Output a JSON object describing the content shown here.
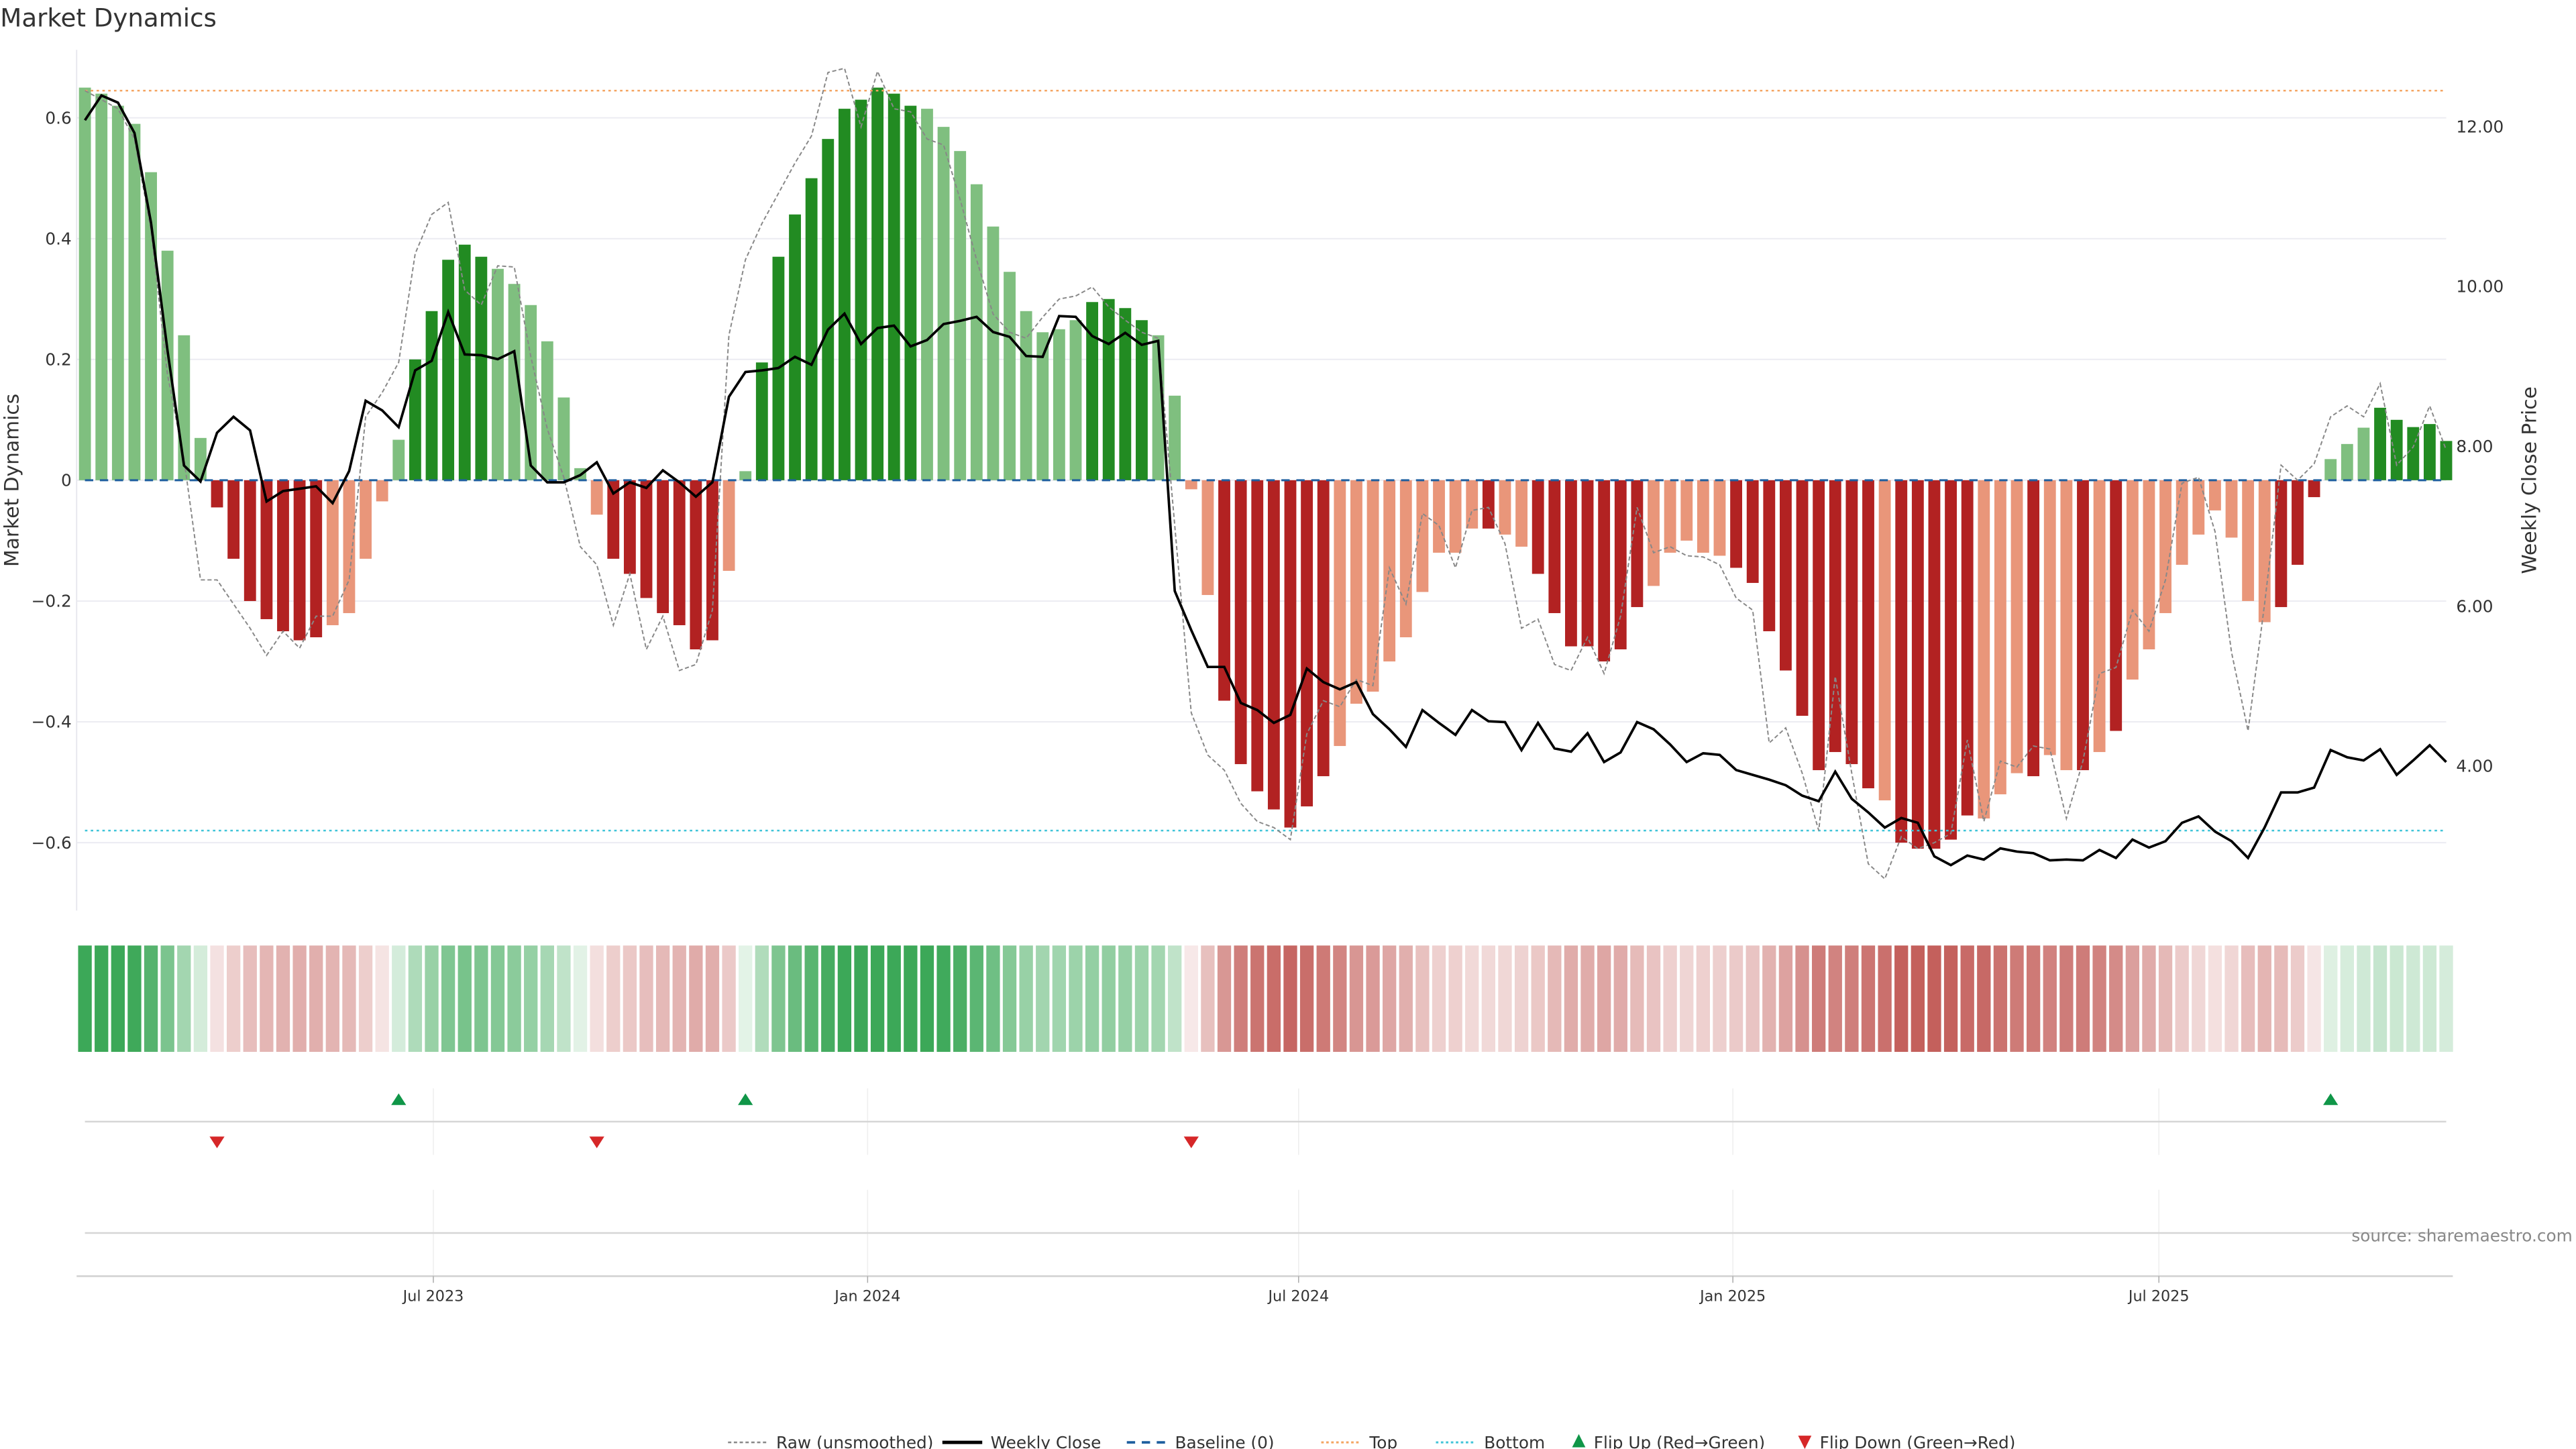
{
  "chart_data": {
    "type": "bar",
    "title": "Market Dynamics",
    "ylabel": "Market Dynamics",
    "y2label": "Weekly Close Price",
    "ylim": [
      -0.72,
      0.7
    ],
    "y2lim": [
      2.2,
      13.0
    ],
    "yticks": [
      {
        "v": 0.6,
        "label": "0.6"
      },
      {
        "v": 0.4,
        "label": "0.4"
      },
      {
        "v": 0.2,
        "label": "0.2"
      },
      {
        "v": 0,
        "label": "0"
      },
      {
        "v": -0.2,
        "label": "−0.2"
      },
      {
        "v": -0.4,
        "label": "−0.4"
      },
      {
        "v": -0.6,
        "label": "−0.6"
      }
    ],
    "y2ticks": [
      {
        "v": 4,
        "label": "4.00"
      },
      {
        "v": 6,
        "label": "6.00"
      },
      {
        "v": 8,
        "label": "8.00"
      },
      {
        "v": 10,
        "label": "10.00"
      },
      {
        "v": 12,
        "label": "12.00"
      }
    ],
    "xticks": [
      {
        "x": 21.1,
        "label": "Jul 2023"
      },
      {
        "x": 47.4,
        "label": "Jan 2024"
      },
      {
        "x": 73.5,
        "label": "Jul 2024"
      },
      {
        "x": 99.8,
        "label": "Jan 2025"
      },
      {
        "x": 125.6,
        "label": "Jul 2025"
      }
    ],
    "grid": true,
    "reference_lines": {
      "baseline": 0,
      "top": 0.645,
      "bottom": -0.58
    },
    "colors": {
      "strong_up": "#228b22",
      "weak_up": "#7fbf7f",
      "strong_down": "#b22222",
      "weak_down": "#e9967a",
      "top": "#f4a460",
      "bottom": "#40c4d8",
      "baseline": "#1f5f9f",
      "raw": "#888888",
      "close": "#000000",
      "flip_up": "#109648",
      "flip_down": "#d62728"
    },
    "values": [
      0.65,
      0.64,
      0.62,
      0.59,
      0.51,
      0.38,
      0.24,
      0.07,
      -0.045,
      -0.13,
      -0.2,
      -0.23,
      -0.25,
      -0.265,
      -0.26,
      -0.24,
      -0.22,
      -0.13,
      -0.035,
      0.067,
      0.2,
      0.28,
      0.365,
      0.39,
      0.37,
      0.35,
      0.325,
      0.29,
      0.23,
      0.137,
      0.02,
      -0.057,
      -0.13,
      -0.155,
      -0.195,
      -0.22,
      -0.24,
      -0.28,
      -0.265,
      -0.15,
      0.015,
      0.195,
      0.37,
      0.44,
      0.5,
      0.565,
      0.615,
      0.63,
      0.65,
      0.64,
      0.62,
      0.615,
      0.585,
      0.545,
      0.49,
      0.42,
      0.345,
      0.28,
      0.245,
      0.25,
      0.265,
      0.295,
      0.3,
      0.285,
      0.265,
      0.24,
      0.14,
      -0.015,
      -0.19,
      -0.365,
      -0.47,
      -0.515,
      -0.545,
      -0.575,
      -0.54,
      -0.49,
      -0.44,
      -0.37,
      -0.35,
      -0.3,
      -0.26,
      -0.185,
      -0.12,
      -0.12,
      -0.08,
      -0.08,
      -0.09,
      -0.11,
      -0.155,
      -0.22,
      -0.275,
      -0.275,
      -0.3,
      -0.28,
      -0.21,
      -0.175,
      -0.12,
      -0.1,
      -0.12,
      -0.125,
      -0.145,
      -0.17,
      -0.25,
      -0.315,
      -0.39,
      -0.48,
      -0.45,
      -0.47,
      -0.51,
      -0.53,
      -0.6,
      -0.61,
      -0.61,
      -0.595,
      -0.555,
      -0.56,
      -0.52,
      -0.485,
      -0.49,
      -0.455,
      -0.48,
      -0.48,
      -0.45,
      -0.415,
      -0.33,
      -0.28,
      -0.22,
      -0.14,
      -0.09,
      -0.05,
      -0.095,
      -0.2,
      -0.235,
      -0.21,
      -0.14,
      -0.028,
      0.035,
      0.06,
      0.087,
      0.12,
      0.1,
      0.088,
      0.093,
      0.065
    ],
    "strength": "sllllllldddddddllllldddddllllllldddddddllddddddddddllllllllllddddlllldddddddllllllllldlldddddddllllldddddddddldddddllldlldldllllllllldddllldddddlldl",
    "raw": [
      0.645,
      0.63,
      0.615,
      0.565,
      0.415,
      0.175,
      0.035,
      -0.165,
      -0.165,
      -0.205,
      -0.245,
      -0.29,
      -0.25,
      -0.278,
      -0.225,
      -0.225,
      -0.165,
      0.105,
      0.145,
      0.195,
      0.375,
      0.44,
      0.46,
      0.315,
      0.29,
      0.355,
      0.353,
      0.205,
      0.085,
      0.005,
      -0.11,
      -0.14,
      -0.24,
      -0.155,
      -0.28,
      -0.225,
      -0.315,
      -0.305,
      -0.215,
      0.24,
      0.365,
      0.425,
      0.475,
      0.525,
      0.57,
      0.675,
      0.682,
      0.585,
      0.677,
      0.615,
      0.61,
      0.565,
      0.555,
      0.465,
      0.365,
      0.275,
      0.245,
      0.235,
      0.27,
      0.3,
      0.305,
      0.32,
      0.287,
      0.265,
      0.245,
      0.235,
      -0.075,
      -0.385,
      -0.455,
      -0.48,
      -0.535,
      -0.565,
      -0.575,
      -0.595,
      -0.42,
      -0.365,
      -0.375,
      -0.33,
      -0.34,
      -0.145,
      -0.205,
      -0.055,
      -0.075,
      -0.145,
      -0.05,
      -0.045,
      -0.105,
      -0.245,
      -0.23,
      -0.305,
      -0.315,
      -0.26,
      -0.32,
      -0.225,
      -0.045,
      -0.12,
      -0.11,
      -0.125,
      -0.127,
      -0.14,
      -0.195,
      -0.215,
      -0.435,
      -0.41,
      -0.485,
      -0.58,
      -0.325,
      -0.485,
      -0.635,
      -0.66,
      -0.59,
      -0.61,
      -0.6,
      -0.585,
      -0.43,
      -0.565,
      -0.465,
      -0.475,
      -0.44,
      -0.445,
      -0.56,
      -0.465,
      -0.32,
      -0.31,
      -0.215,
      -0.25,
      -0.165,
      -0.005,
      0.005,
      -0.085,
      -0.285,
      -0.415,
      -0.205,
      0.025,
      0,
      0.027,
      0.105,
      0.123,
      0.105,
      0.16,
      0.025,
      0.055,
      0.123,
      0.05
    ],
    "close": [
      12.08,
      12.39,
      12.3,
      11.92,
      10.8,
      9.2,
      7.76,
      7.56,
      8.17,
      8.37,
      8.2,
      7.31,
      7.44,
      7.47,
      7.5,
      7.29,
      7.69,
      8.57,
      8.45,
      8.24,
      8.95,
      9.07,
      9.68,
      9.15,
      9.14,
      9.09,
      9.19,
      7.76,
      7.55,
      7.55,
      7.64,
      7.8,
      7.41,
      7.55,
      7.48,
      7.7,
      7.55,
      7.37,
      7.55,
      8.62,
      8.93,
      8.95,
      8.98,
      9.12,
      9.02,
      9.46,
      9.66,
      9.28,
      9.48,
      9.51,
      9.25,
      9.33,
      9.53,
      9.57,
      9.62,
      9.43,
      9.37,
      9.13,
      9.12,
      9.63,
      9.62,
      9.38,
      9.28,
      9.42,
      9.27,
      9.32,
      6.19,
      5.7,
      5.24,
      5.24,
      4.79,
      4.7,
      4.54,
      4.64,
      5.22,
      5.05,
      4.96,
      5.05,
      4.65,
      4.46,
      4.24,
      4.7,
      4.54,
      4.39,
      4.7,
      4.56,
      4.55,
      4.2,
      4.54,
      4.22,
      4.18,
      4.41,
      4.05,
      4.17,
      4.55,
      4.46,
      4.27,
      4.05,
      4.16,
      4.14,
      3.95,
      3.89,
      3.83,
      3.76,
      3.63,
      3.56,
      3.93,
      3.59,
      3.42,
      3.23,
      3.35,
      3.29,
      2.87,
      2.76,
      2.88,
      2.83,
      2.97,
      2.93,
      2.91,
      2.82,
      2.83,
      2.82,
      2.95,
      2.85,
      3.08,
      2.98,
      3.06,
      3.29,
      3.37,
      3.18,
      3.06,
      2.85,
      3.23,
      3.67,
      3.67,
      3.73,
      4.2,
      4.11,
      4.07,
      4.21,
      3.89,
      4.07,
      4.26,
      4.05
    ],
    "flips_up": [
      19,
      40,
      136
    ],
    "flips_down": [
      8,
      31,
      67
    ],
    "legend": {
      "position": "bottom-center",
      "items": [
        {
          "key": "raw",
          "label": "Raw (unsmoothed)"
        },
        {
          "key": "close",
          "label": "Weekly Close"
        },
        {
          "key": "baseline",
          "label": "Baseline (0)"
        },
        {
          "key": "top",
          "label": "Top"
        },
        {
          "key": "bottom",
          "label": "Bottom"
        },
        {
          "key": "flip_up",
          "label": "Flip Up (Red→Green)"
        },
        {
          "key": "flip_down",
          "label": "Flip Down (Green→Red)"
        }
      ]
    },
    "source": "source: sharemaestro.com"
  }
}
